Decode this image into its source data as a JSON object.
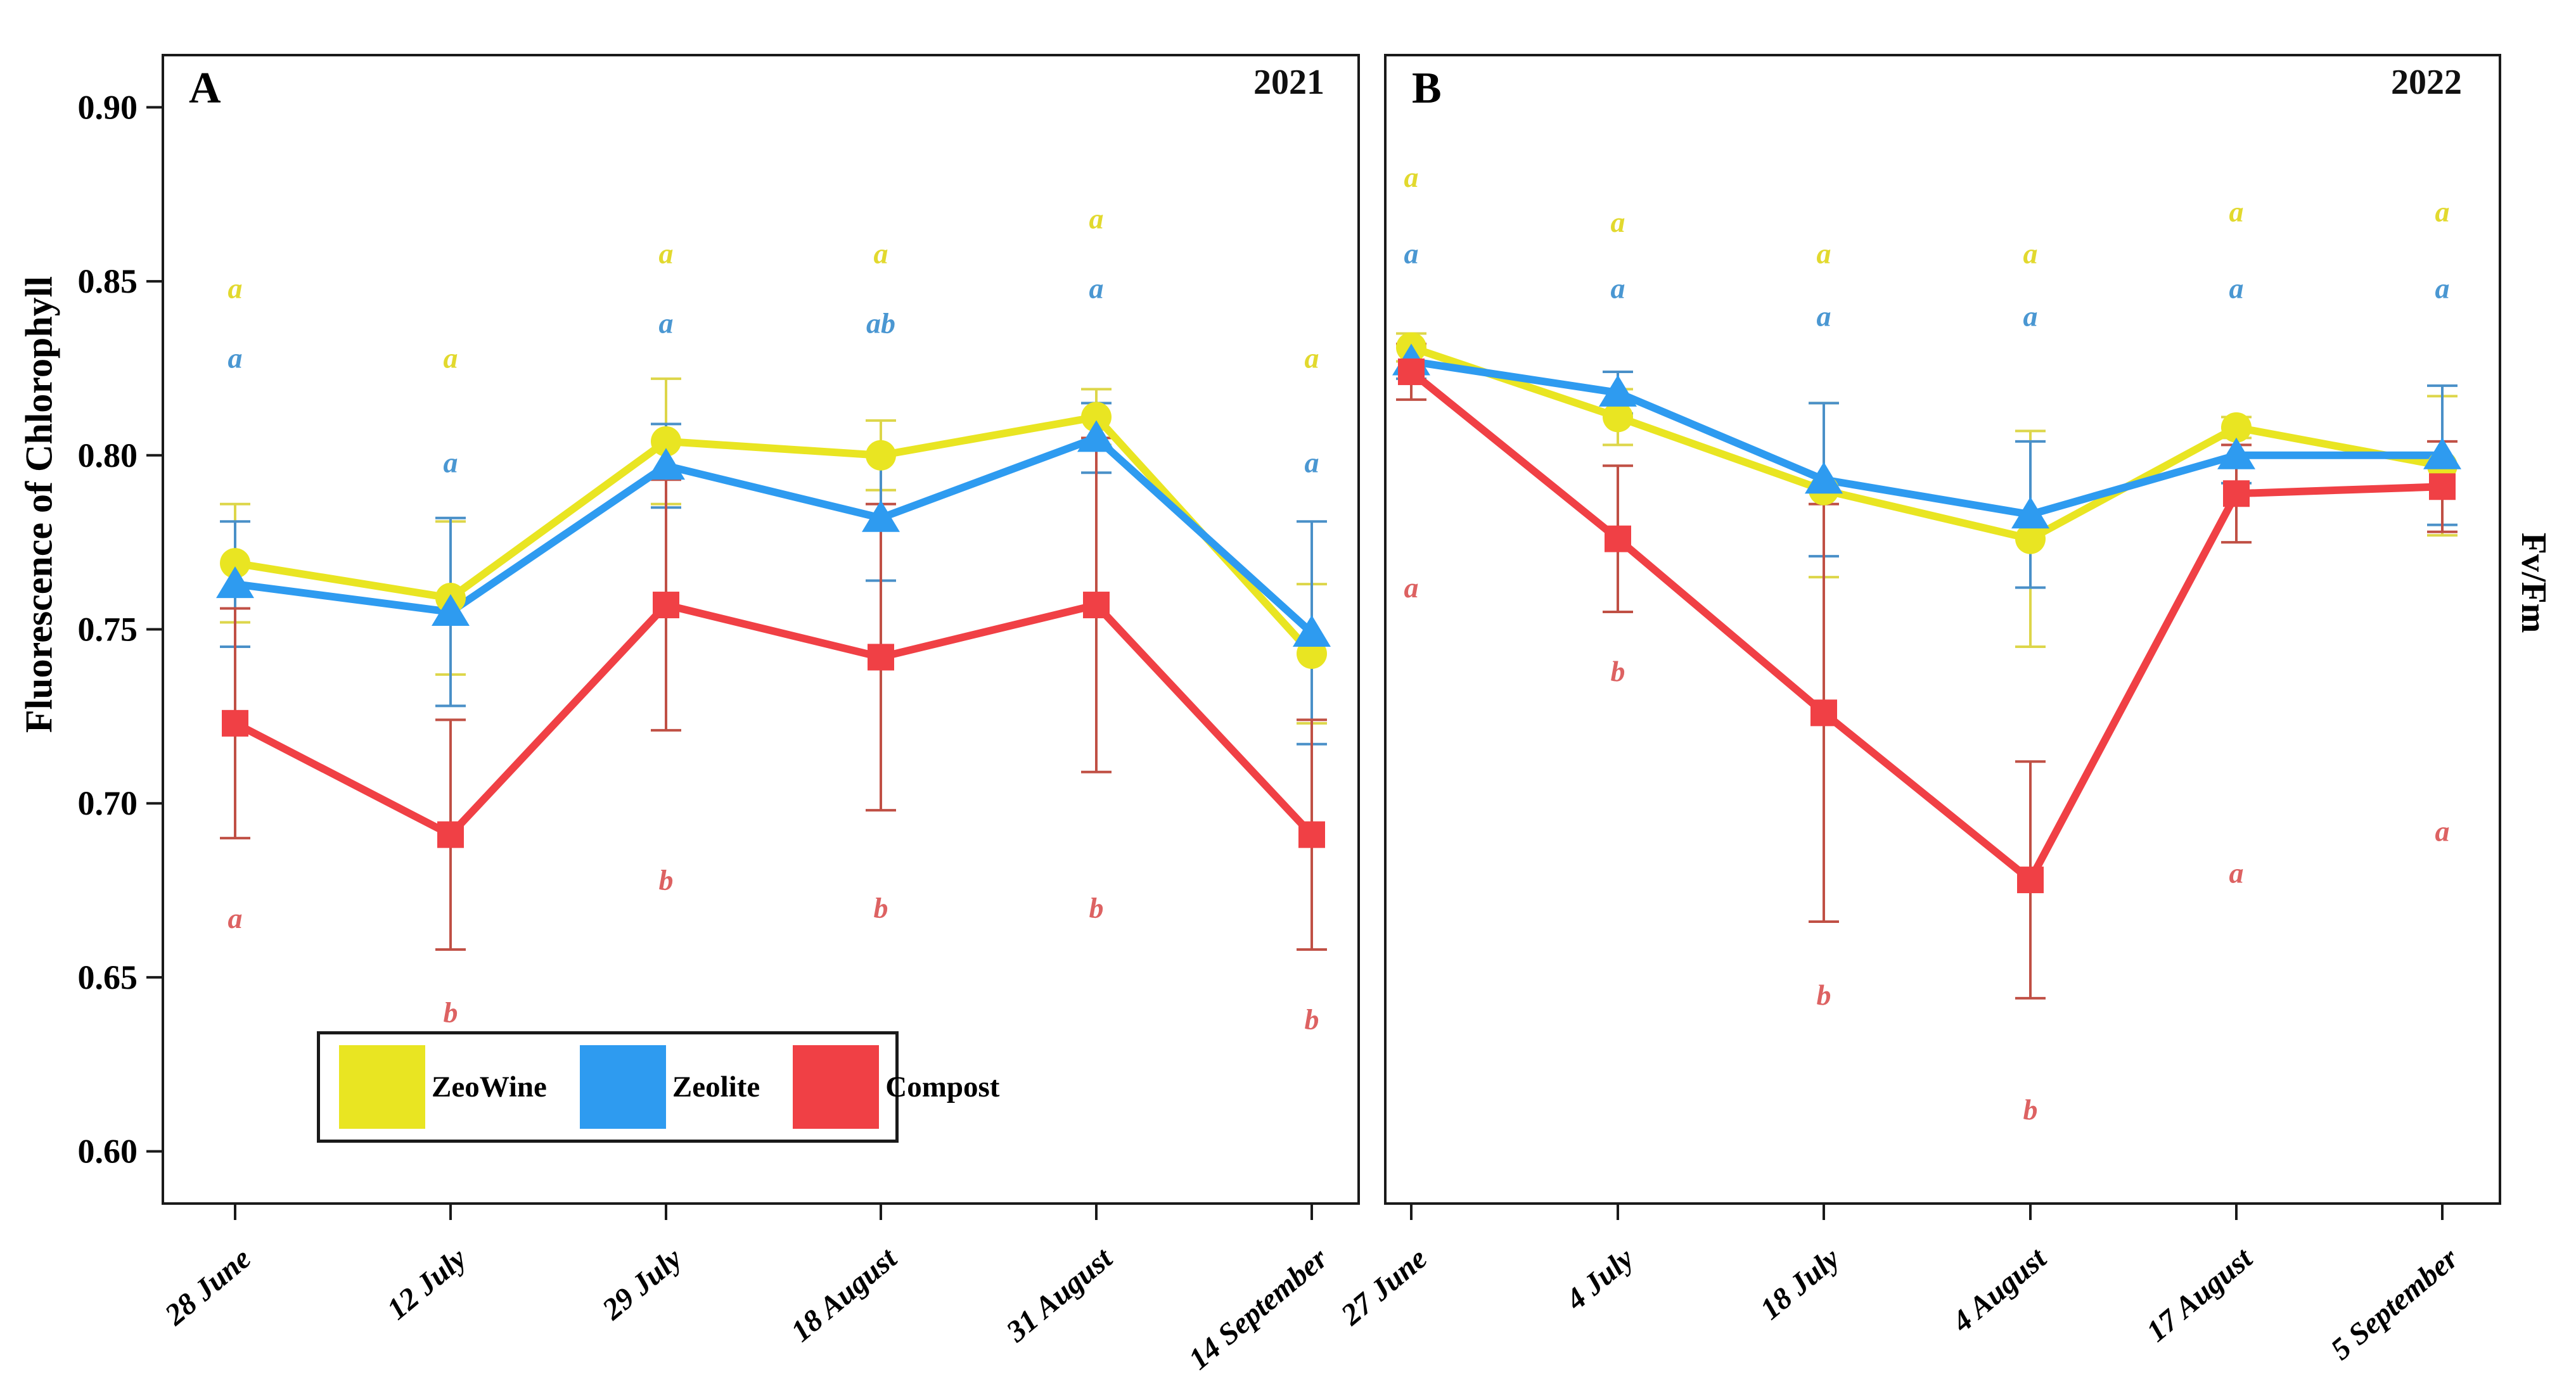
{
  "figure": {
    "y_axis_title": "Fluorescence of Chlorophyll",
    "right_axis_title": "Fv/Fm",
    "panels": [
      {
        "label": "A",
        "year": "2021"
      },
      {
        "label": "B",
        "year": "2022"
      }
    ]
  },
  "legend": {
    "items": [
      {
        "label": "ZeoWine",
        "color": "#e9e522"
      },
      {
        "label": "Zeolite",
        "color": "#2e9bf0"
      },
      {
        "label": "Compost",
        "color": "#f04045"
      }
    ]
  },
  "chart_data": [
    {
      "type": "line",
      "panel": "A",
      "year": "2021",
      "categories": [
        "28 June",
        "12 July",
        "29 July",
        "18 August",
        "31 August",
        "14 September"
      ],
      "ylim": [
        0.585,
        0.915
      ],
      "yticks": [
        0.9,
        0.85,
        0.8,
        0.75,
        0.7,
        0.65,
        0.6
      ],
      "ytick_labels": [
        "0.90",
        "0.85",
        "0.80",
        "0.75",
        "0.70",
        "0.65",
        "0.60"
      ],
      "grid": false,
      "series": [
        {
          "name": "ZeoWine",
          "marker": "circle",
          "color": "#e9e522",
          "error_color": "#ddd64a",
          "letter_color": "#e2d92e",
          "values": [
            0.769,
            0.759,
            0.804,
            0.8,
            0.811,
            0.743
          ],
          "errors": [
            0.017,
            0.022,
            0.018,
            0.01,
            0.008,
            0.02
          ],
          "letters": [
            "a",
            "a",
            "a",
            "a",
            "a",
            "a"
          ],
          "letter_y": [
            0.848,
            0.828,
            0.858,
            0.858,
            0.868,
            0.828
          ]
        },
        {
          "name": "Zeolite",
          "marker": "triangle",
          "color": "#2e9bf0",
          "error_color": "#4a90c8",
          "letter_color": "#4a97d2",
          "values": [
            0.763,
            0.755,
            0.797,
            0.782,
            0.805,
            0.749
          ],
          "errors": [
            0.018,
            0.027,
            0.012,
            0.018,
            0.01,
            0.032
          ],
          "letters": [
            "a",
            "a",
            "a",
            "ab",
            "a",
            "a"
          ],
          "letter_y": [
            0.828,
            0.798,
            0.838,
            0.838,
            0.848,
            0.798
          ]
        },
        {
          "name": "Compost",
          "marker": "square",
          "color": "#f04045",
          "error_color": "#c05045",
          "letter_color": "#dd6262",
          "values": [
            0.723,
            0.691,
            0.757,
            0.742,
            0.757,
            0.691
          ],
          "errors": [
            0.033,
            0.033,
            0.036,
            0.044,
            0.048,
            0.033
          ],
          "letters": [
            "a",
            "b",
            "b",
            "b",
            "b",
            "b"
          ],
          "letter_y": [
            0.667,
            0.64,
            0.678,
            0.67,
            0.67,
            0.638
          ]
        }
      ]
    },
    {
      "type": "line",
      "panel": "B",
      "year": "2022",
      "categories": [
        "27 June",
        "4 July",
        "18 July",
        "4 August",
        "17 August",
        "5 September"
      ],
      "ylim": [
        0.585,
        0.915
      ],
      "yticks": [
        0.9,
        0.85,
        0.8,
        0.75,
        0.7,
        0.65,
        0.6
      ],
      "ytick_labels": [],
      "grid": false,
      "series": [
        {
          "name": "ZeoWine",
          "marker": "circle",
          "color": "#e9e522",
          "error_color": "#ddd64a",
          "letter_color": "#e2d92e",
          "values": [
            0.831,
            0.811,
            0.79,
            0.776,
            0.808,
            0.797
          ],
          "errors": [
            0.004,
            0.008,
            0.025,
            0.031,
            0.003,
            0.02
          ],
          "letters": [
            "a",
            "a",
            "a",
            "a",
            "a",
            "a"
          ],
          "letter_y": [
            0.88,
            0.867,
            0.858,
            0.858,
            0.87,
            0.87
          ]
        },
        {
          "name": "Zeolite",
          "marker": "triangle",
          "color": "#2e9bf0",
          "error_color": "#4a90c8",
          "letter_color": "#4a97d2",
          "values": [
            0.827,
            0.818,
            0.793,
            0.783,
            0.8,
            0.8
          ],
          "errors": [
            0.005,
            0.006,
            0.022,
            0.021,
            0.008,
            0.02
          ],
          "letters": [
            "a",
            "a",
            "a",
            "a",
            "a",
            "a"
          ],
          "letter_y": [
            0.858,
            0.848,
            0.84,
            0.84,
            0.848,
            0.848
          ]
        },
        {
          "name": "Compost",
          "marker": "square",
          "color": "#f04045",
          "error_color": "#c05045",
          "letter_color": "#dd6262",
          "values": [
            0.824,
            0.776,
            0.726,
            0.678,
            0.789,
            0.791
          ],
          "errors": [
            0.008,
            0.021,
            0.06,
            0.034,
            0.014,
            0.013
          ],
          "letters": [
            "a",
            "b",
            "b",
            "b",
            "a",
            "a"
          ],
          "letter_y": [
            0.762,
            0.738,
            0.645,
            0.612,
            0.68,
            0.692
          ]
        }
      ]
    }
  ]
}
